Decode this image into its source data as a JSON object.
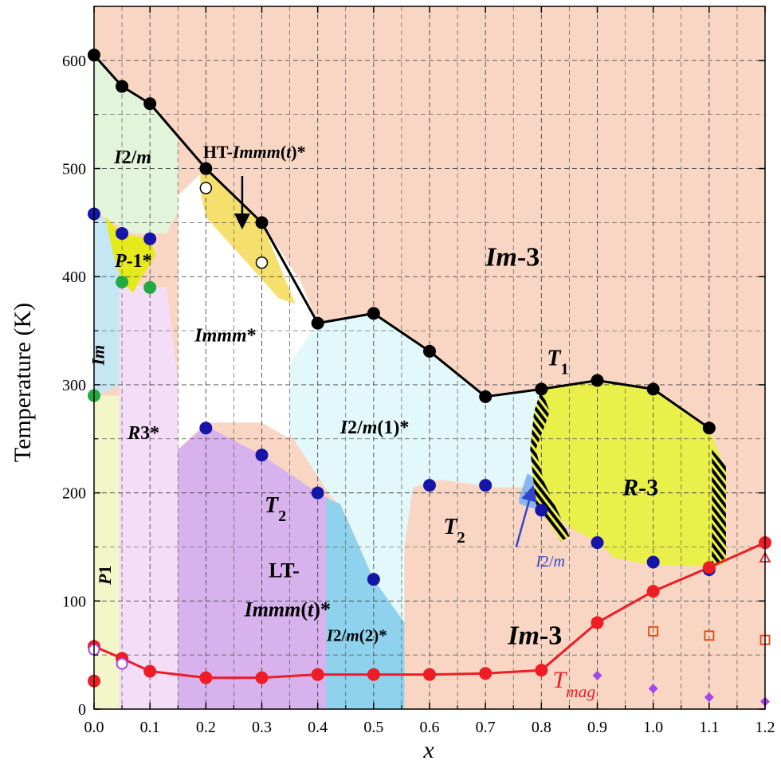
{
  "chart_data": {
    "type": "scatter",
    "xlabel": "x",
    "ylabel": "Temperature (K)",
    "xlim": [
      0.0,
      1.2
    ],
    "ylim": [
      0,
      650
    ],
    "x_ticks": [
      "0.0",
      "0.1",
      "0.2",
      "0.3",
      "0.4",
      "0.5",
      "0.6",
      "0.7",
      "0.8",
      "0.9",
      "1.0",
      "1.1",
      "1.2"
    ],
    "y_ticks": [
      "0",
      "100",
      "200",
      "300",
      "400",
      "500",
      "600"
    ],
    "grid": true,
    "colors": {
      "im3": "#f9d6c4",
      "i2m1": "#e2f8fb",
      "i2m_top": "#e2f5da",
      "immm_ht": "#f5e06e",
      "p1bar": "#e6ea1a",
      "im": "#c5e7f3",
      "r3": "#f4ddf7",
      "p1": "#f3f6c9",
      "lt_immm": "#d7b2ec",
      "i2m2": "#8fd2ee",
      "i2m_small": "#8ab6f0",
      "r3bar": "#eaf04a",
      "black": "#000000",
      "navy": "#1515a8",
      "green": "#22aa44",
      "red": "#ee1c25",
      "purple": "#a347e8",
      "orange": "#e0521e"
    },
    "series": [
      {
        "name": "T1",
        "marker": "black-circle",
        "connected": true,
        "points": [
          [
            0.0,
            605
          ],
          [
            0.05,
            576
          ],
          [
            0.1,
            560
          ],
          [
            0.2,
            500
          ],
          [
            0.3,
            450
          ],
          [
            0.4,
            357
          ],
          [
            0.5,
            366
          ],
          [
            0.6,
            331
          ],
          [
            0.7,
            289
          ],
          [
            0.8,
            296
          ],
          [
            0.9,
            304
          ],
          [
            1.0,
            296
          ],
          [
            1.1,
            260
          ]
        ]
      },
      {
        "name": "HT-Immm(t)* open",
        "marker": "open-circle",
        "connected": false,
        "points": [
          [
            0.2,
            482
          ],
          [
            0.3,
            413
          ]
        ]
      },
      {
        "name": "T2",
        "marker": "blue-circle",
        "connected": false,
        "points": [
          [
            0.0,
            458
          ],
          [
            0.05,
            440
          ],
          [
            0.1,
            435
          ],
          [
            0.2,
            260
          ],
          [
            0.3,
            235
          ],
          [
            0.4,
            200
          ],
          [
            0.5,
            120
          ],
          [
            0.6,
            207
          ],
          [
            0.7,
            207
          ],
          [
            0.8,
            184
          ],
          [
            0.9,
            154
          ],
          [
            1.0,
            136
          ],
          [
            1.1,
            129
          ]
        ]
      },
      {
        "name": "green",
        "marker": "green-circle",
        "connected": false,
        "points": [
          [
            0.05,
            395
          ],
          [
            0.1,
            390
          ],
          [
            0.0,
            290
          ]
        ]
      },
      {
        "name": "Tmag",
        "marker": "red-circle",
        "connected": true,
        "points": [
          [
            0.0,
            58
          ],
          [
            0.05,
            47
          ],
          [
            0.1,
            35
          ],
          [
            0.2,
            29
          ],
          [
            0.3,
            29
          ],
          [
            0.4,
            32
          ],
          [
            0.5,
            32
          ],
          [
            0.6,
            32
          ],
          [
            0.7,
            33
          ],
          [
            0.8,
            36
          ],
          [
            0.9,
            80
          ],
          [
            1.0,
            109
          ],
          [
            1.1,
            131
          ],
          [
            1.2,
            154
          ]
        ]
      },
      {
        "name": "red-extra",
        "marker": "red-circle",
        "connected": false,
        "points": [
          [
            0.0,
            26
          ]
        ]
      },
      {
        "name": "open-purple",
        "marker": "open-purple-circle",
        "connected": false,
        "points": [
          [
            0.0,
            55
          ],
          [
            0.05,
            42
          ]
        ]
      },
      {
        "name": "orange-squares",
        "marker": "open-orange-square",
        "connected": false,
        "points": [
          [
            1.0,
            72
          ],
          [
            1.1,
            68
          ],
          [
            1.2,
            64
          ]
        ]
      },
      {
        "name": "purple-diamonds",
        "marker": "purple-diamond",
        "connected": false,
        "points": [
          [
            0.9,
            31
          ],
          [
            1.0,
            19
          ],
          [
            1.1,
            11
          ],
          [
            1.2,
            7
          ]
        ]
      },
      {
        "name": "red-triangle",
        "marker": "open-red-triangle",
        "connected": false,
        "points": [
          [
            1.2,
            140
          ]
        ]
      }
    ],
    "phase_labels": [
      {
        "text": "I2/m",
        "x": 0.036,
        "y": 505,
        "style": "italic"
      },
      {
        "text": "P-1*",
        "x": 0.037,
        "y": 409,
        "style": "italic"
      },
      {
        "text": "Im",
        "x": 0.018,
        "y": 318,
        "style": "italic",
        "rotated": true
      },
      {
        "text": "R3*",
        "x": 0.06,
        "y": 250,
        "style": "italic"
      },
      {
        "text": "P1",
        "x": 0.03,
        "y": 115,
        "style": "italic",
        "rotated": true
      },
      {
        "text": "HT-Immm(t)*",
        "x": 0.195,
        "y": 510,
        "style": "mixed"
      },
      {
        "text": "Immm*",
        "x": 0.18,
        "y": 340,
        "style": "italic"
      },
      {
        "text": "Im-3",
        "x": 0.7,
        "y": 410,
        "style": "italic"
      },
      {
        "text": "I2/m(1)*",
        "x": 0.44,
        "y": 255,
        "style": "italic"
      },
      {
        "text": "T1",
        "x": 0.81,
        "y": 318,
        "style": "italic"
      },
      {
        "text": "T2",
        "x": 0.305,
        "y": 182,
        "style": "italic"
      },
      {
        "text": "T2",
        "x": 0.625,
        "y": 162,
        "style": "italic"
      },
      {
        "text": "R-3",
        "x": 0.945,
        "y": 198,
        "style": "italic"
      },
      {
        "text": "I2/m",
        "x": 0.79,
        "y": 132,
        "style": "italic-blue"
      },
      {
        "text": "LT-",
        "x": 0.34,
        "y": 122,
        "style": "normal"
      },
      {
        "text": "Immm(t)*",
        "x": 0.346,
        "y": 86,
        "style": "italic"
      },
      {
        "text": "Im-3",
        "x": 0.74,
        "y": 60,
        "style": "italic"
      },
      {
        "text": "I2/m(2)*",
        "x": 0.47,
        "y": 63,
        "style": "italic"
      },
      {
        "text": "Tmag",
        "x": 0.82,
        "y": 20,
        "style": "italic-red"
      }
    ]
  }
}
